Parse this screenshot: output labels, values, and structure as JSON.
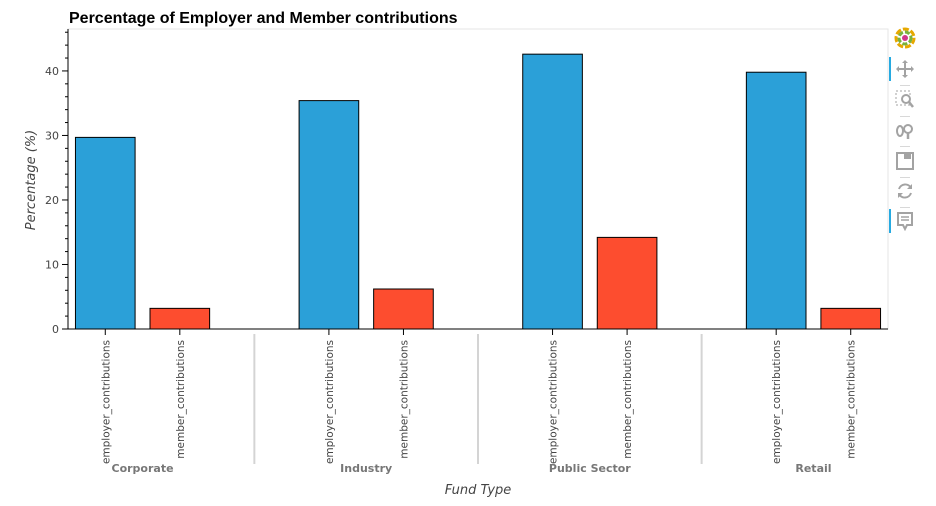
{
  "chart_data": {
    "type": "bar",
    "title": "Percentage of Employer and Member contributions",
    "xlabel": "Fund Type",
    "ylabel": "Percentage (%)",
    "ylim": [
      0,
      46.5
    ],
    "yticks": [
      0,
      10,
      20,
      30,
      40
    ],
    "groups": [
      "Corporate",
      "Industry",
      "Public Sector",
      "Retail"
    ],
    "subcategories": [
      "employer_contributions",
      "member_contributions"
    ],
    "series": [
      {
        "values": [
          29.7,
          35.4,
          42.6,
          39.8
        ],
        "color": "#2ba0d8"
      },
      {
        "values": [
          3.2,
          6.2,
          14.2,
          3.2
        ],
        "color": "#fd4d2f"
      }
    ],
    "grid": false,
    "legend": "none"
  },
  "toolbar": {
    "tools": [
      "bokeh-logo-icon",
      "pan-icon",
      "box-zoom-icon",
      "wheel-zoom-icon",
      "save-icon",
      "reset-icon",
      "hover-icon"
    ]
  }
}
